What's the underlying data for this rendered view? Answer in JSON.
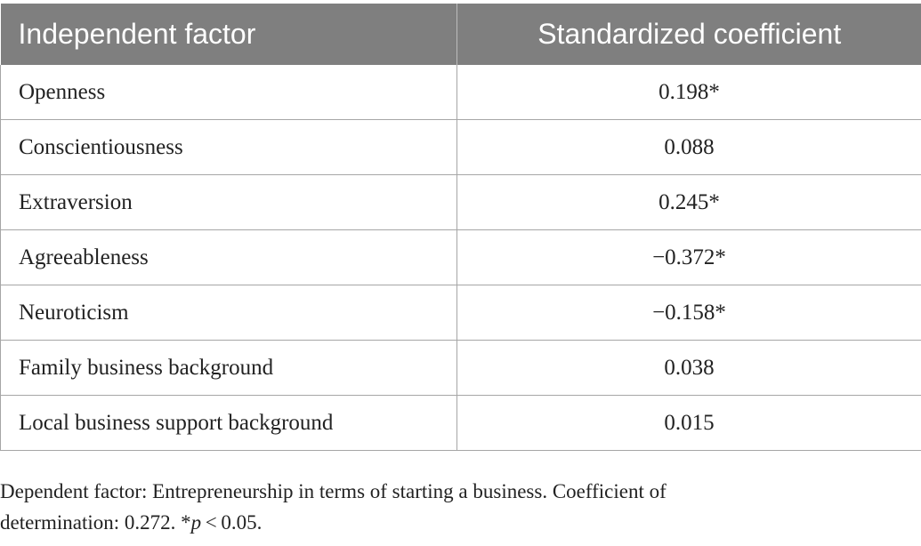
{
  "table": {
    "headers": [
      "Independent factor",
      "Standardized coefficient"
    ],
    "rows": [
      {
        "factor": "Openness",
        "coefficient": "0.198*"
      },
      {
        "factor": "Conscientiousness",
        "coefficient": "0.088"
      },
      {
        "factor": "Extraversion",
        "coefficient": "0.245*"
      },
      {
        "factor": "Agreeableness",
        "coefficient": "−0.372*"
      },
      {
        "factor": "Neuroticism",
        "coefficient": "−0.158*"
      },
      {
        "factor": "Family business background",
        "coefficient": "0.038"
      },
      {
        "factor": "Local business support background",
        "coefficient": "0.015"
      }
    ]
  },
  "footnote": {
    "line1": "Dependent factor: Entrepreneurship in terms of starting a business. Coefficient of",
    "line2_prefix": "determination: 0.272. *",
    "p_symbol": "p",
    "line2_suffix": " < 0.05."
  },
  "colors": {
    "header_bg": "#7f7f7f",
    "header_text": "#ffffff",
    "border": "#a6a6a6"
  }
}
